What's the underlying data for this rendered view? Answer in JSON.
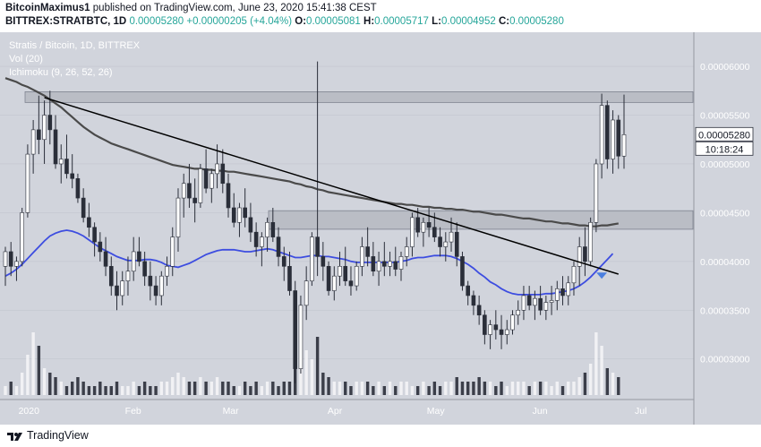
{
  "header": {
    "author": "BitcoinMaximus1",
    "published": "published on TradingView.com, June 23, 2020 15:41:38 CEST",
    "symbol": "BITTREX:STRATBTC, 1D",
    "price": "0.00005280",
    "change": "+0.00000205 (+4.04%)",
    "o_label": "O:",
    "o_value": "0.00005081",
    "h_label": "H:",
    "h_value": "0.00005717",
    "l_label": "L:",
    "l_value": "0.00004952",
    "c_label": "C:",
    "c_value": "0.00005280"
  },
  "legend": {
    "title": "Stratis / Bitcoin, 1D, BITTREX",
    "vol": "Vol (20)",
    "ichimoku": "Ichimoku (9, 26, 52, 26)"
  },
  "price_tag": {
    "value": "0.00005280",
    "countdown": "10:18:24"
  },
  "footer": {
    "logo_text": "TradingView"
  },
  "colors": {
    "background": "#d1d4dc",
    "up_candle": "#ffffff",
    "down_candle": "#2a2e39",
    "ma_slow": "#4a4a4a",
    "ma_fast": "#3d4de0",
    "zone": "#b2b5be",
    "signal_arrow": "#4a7fe0"
  },
  "chart_data": {
    "type": "candlestick",
    "x_ticks": [
      "2020",
      "Feb",
      "Mar",
      "Apr",
      "May",
      "Jun",
      "Jul"
    ],
    "y_ticks": [
      "0.00006000",
      "0.00005500",
      "0.00005000",
      "0.00004500",
      "0.00004000",
      "0.00003500",
      "0.00003000"
    ],
    "y_tick_values": [
      6e-05,
      5.5e-05,
      5e-05,
      4.5e-05,
      4e-05,
      3.5e-05,
      3e-05
    ],
    "ylim": [
      2.63e-05,
      6.35e-05
    ],
    "candles": [
      [
        3.95e-05,
        4.15e-05,
        3.75e-05,
        4.1e-05
      ],
      [
        4.1e-05,
        4.2e-05,
        3.85e-05,
        3.95e-05
      ],
      [
        3.95e-05,
        4.05e-05,
        3.8e-05,
        4e-05
      ],
      [
        4e-05,
        4.55e-05,
        3.95e-05,
        4.5e-05
      ],
      [
        4.5e-05,
        5.2e-05,
        4.45e-05,
        5.1e-05
      ],
      [
        5.1e-05,
        5.45e-05,
        4.9e-05,
        5.35e-05
      ],
      [
        5.35e-05,
        5.7e-05,
        5.1e-05,
        5.25e-05
      ],
      [
        5.25e-05,
        5.65e-05,
        5e-05,
        5.5e-05
      ],
      [
        5.5e-05,
        5.75e-05,
        5.2e-05,
        5.35e-05
      ],
      [
        5.35e-05,
        5.5e-05,
        4.95e-05,
        5e-05
      ],
      [
        5e-05,
        5.2e-05,
        4.8e-05,
        5.05e-05
      ],
      [
        5.05e-05,
        5.3e-05,
        4.85e-05,
        4.9e-05
      ],
      [
        4.9e-05,
        5.1e-05,
        4.75e-05,
        4.85e-05
      ],
      [
        4.85e-05,
        4.9e-05,
        4.6e-05,
        4.65e-05
      ],
      [
        4.65e-05,
        4.75e-05,
        4.4e-05,
        4.45e-05
      ],
      [
        4.45e-05,
        4.6e-05,
        4.25e-05,
        4.35e-05
      ],
      [
        4.35e-05,
        4.4e-05,
        4.05e-05,
        4.2e-05
      ],
      [
        4.2e-05,
        4.3e-05,
        4e-05,
        4.1e-05
      ],
      [
        4.1e-05,
        4.25e-05,
        3.85e-05,
        3.95e-05
      ],
      [
        3.95e-05,
        4.05e-05,
        3.65e-05,
        3.75e-05
      ],
      [
        3.75e-05,
        3.9e-05,
        3.5e-05,
        3.65e-05
      ],
      [
        3.65e-05,
        3.9e-05,
        3.55e-05,
        3.8e-05
      ],
      [
        3.8e-05,
        4.05e-05,
        3.65e-05,
        3.9e-05
      ],
      [
        3.9e-05,
        4.25e-05,
        3.8e-05,
        4.1e-05
      ],
      [
        4.1e-05,
        4.25e-05,
        3.95e-05,
        4e-05
      ],
      [
        4e-05,
        4.1e-05,
        3.75e-05,
        3.85e-05
      ],
      [
        3.85e-05,
        4e-05,
        3.6e-05,
        3.75e-05
      ],
      [
        3.75e-05,
        3.85e-05,
        3.55e-05,
        3.65e-05
      ],
      [
        3.65e-05,
        3.9e-05,
        3.55e-05,
        3.85e-05
      ],
      [
        3.85e-05,
        4.05e-05,
        3.75e-05,
        3.95e-05
      ],
      [
        3.95e-05,
        4.35e-05,
        3.85e-05,
        4.25e-05
      ],
      [
        4.25e-05,
        4.75e-05,
        4.1e-05,
        4.65e-05
      ],
      [
        4.65e-05,
        4.9e-05,
        4.45e-05,
        4.8e-05
      ],
      [
        4.8e-05,
        5e-05,
        4.55e-05,
        4.65e-05
      ],
      [
        4.65e-05,
        4.85e-05,
        4.4e-05,
        4.6e-05
      ],
      [
        4.6e-05,
        5e-05,
        4.55e-05,
        4.95e-05
      ],
      [
        4.95e-05,
        5.15e-05,
        4.7e-05,
        4.75e-05
      ],
      [
        4.75e-05,
        4.95e-05,
        4.6e-05,
        4.9e-05
      ],
      [
        4.9e-05,
        5.2e-05,
        4.75e-05,
        5e-05
      ],
      [
        5e-05,
        5.15e-05,
        4.7e-05,
        4.8e-05
      ],
      [
        4.8e-05,
        4.9e-05,
        4.45e-05,
        4.55e-05
      ],
      [
        4.55e-05,
        4.7e-05,
        4.35e-05,
        4.4e-05
      ],
      [
        4.4e-05,
        4.6e-05,
        4.25e-05,
        4.55e-05
      ],
      [
        4.55e-05,
        4.75e-05,
        4.35e-05,
        4.45e-05
      ],
      [
        4.45e-05,
        4.6e-05,
        4.2e-05,
        4.3e-05
      ],
      [
        4.3e-05,
        4.4e-05,
        4.05e-05,
        4.15e-05
      ],
      [
        4.15e-05,
        4.3e-05,
        3.95e-05,
        4.25e-05
      ],
      [
        4.25e-05,
        4.45e-05,
        4.1e-05,
        4.4e-05
      ],
      [
        4.4e-05,
        4.55e-05,
        4.2e-05,
        4.25e-05
      ],
      [
        4.25e-05,
        4.35e-05,
        3.95e-05,
        4.05e-05
      ],
      [
        4.05e-05,
        4.15e-05,
        3.8e-05,
        3.95e-05
      ],
      [
        3.95e-05,
        4.1e-05,
        3.65e-05,
        3.7e-05
      ],
      [
        3.7e-05,
        3.8e-05,
        2.75e-05,
        2.9e-05
      ],
      [
        2.9e-05,
        3.65e-05,
        2.85e-05,
        3.55e-05
      ],
      [
        3.55e-05,
        3.95e-05,
        3.4e-05,
        3.8e-05
      ],
      [
        3.8e-05,
        4.3e-05,
        3.75e-05,
        4.25e-05
      ],
      [
        4.25e-05,
        6.05e-05,
        3.85e-05,
        4.05e-05
      ],
      [
        4.05e-05,
        4.2e-05,
        3.8e-05,
        3.95e-05
      ],
      [
        3.95e-05,
        4e-05,
        3.65e-05,
        3.7e-05
      ],
      [
        3.7e-05,
        3.95e-05,
        3.6e-05,
        3.85e-05
      ],
      [
        3.85e-05,
        4.1e-05,
        3.75e-05,
        3.95e-05
      ],
      [
        3.95e-05,
        4.15e-05,
        3.75e-05,
        3.8e-05
      ],
      [
        3.8e-05,
        3.95e-05,
        3.65e-05,
        3.75e-05
      ],
      [
        3.75e-05,
        4e-05,
        3.7e-05,
        3.95e-05
      ],
      [
        3.95e-05,
        4.25e-05,
        3.85e-05,
        4.15e-05
      ],
      [
        4.15e-05,
        4.35e-05,
        3.95e-05,
        4.05e-05
      ],
      [
        4.05e-05,
        4.2e-05,
        3.85e-05,
        3.9e-05
      ],
      [
        3.9e-05,
        4.1e-05,
        3.75e-05,
        4e-05
      ],
      [
        4e-05,
        4.2e-05,
        3.85e-05,
        3.95e-05
      ],
      [
        3.95e-05,
        4.1e-05,
        3.85e-05,
        4e-05
      ],
      [
        4e-05,
        4.15e-05,
        3.85e-05,
        3.92e-05
      ],
      [
        3.92e-05,
        4.1e-05,
        3.8e-05,
        4.05e-05
      ],
      [
        4.05e-05,
        4.25e-05,
        3.95e-05,
        4.15e-05
      ],
      [
        4.15e-05,
        4.5e-05,
        4.05e-05,
        4.45e-05
      ],
      [
        4.45e-05,
        4.55e-05,
        4.25e-05,
        4.3e-05
      ],
      [
        4.3e-05,
        4.45e-05,
        4.15e-05,
        4.4e-05
      ],
      [
        4.4e-05,
        4.55e-05,
        4.25e-05,
        4.35e-05
      ],
      [
        4.35e-05,
        4.5e-05,
        4.2e-05,
        4.25e-05
      ],
      [
        4.25e-05,
        4.35e-05,
        4.05e-05,
        4.15e-05
      ],
      [
        4.15e-05,
        4.3e-05,
        4e-05,
        4.2e-05
      ],
      [
        4.2e-05,
        4.45e-05,
        4.1e-05,
        4.3e-05
      ],
      [
        4.3e-05,
        4.4e-05,
        3.95e-05,
        4.05e-05
      ],
      [
        4.05e-05,
        4.1e-05,
        3.7e-05,
        3.75e-05
      ],
      [
        3.75e-05,
        3.8e-05,
        3.55e-05,
        3.65e-05
      ],
      [
        3.65e-05,
        3.7e-05,
        3.45e-05,
        3.55e-05
      ],
      [
        3.55e-05,
        3.65e-05,
        3.35e-05,
        3.45e-05
      ],
      [
        3.45e-05,
        3.5e-05,
        3.15e-05,
        3.25e-05
      ],
      [
        3.25e-05,
        3.4e-05,
        3.1e-05,
        3.35e-05
      ],
      [
        3.35e-05,
        3.5e-05,
        3.2e-05,
        3.3e-05
      ],
      [
        3.3e-05,
        3.45e-05,
        3.1e-05,
        3.25e-05
      ],
      [
        3.25e-05,
        3.4e-05,
        3.15e-05,
        3.3e-05
      ],
      [
        3.3e-05,
        3.5e-05,
        3.25e-05,
        3.45e-05
      ],
      [
        3.45e-05,
        3.6e-05,
        3.35e-05,
        3.5e-05
      ],
      [
        3.5e-05,
        3.75e-05,
        3.4e-05,
        3.65e-05
      ],
      [
        3.65e-05,
        3.75e-05,
        3.5e-05,
        3.55e-05
      ],
      [
        3.55e-05,
        3.7e-05,
        3.4e-05,
        3.62e-05
      ],
      [
        3.62e-05,
        3.75e-05,
        3.45e-05,
        3.5e-05
      ],
      [
        3.5e-05,
        3.65e-05,
        3.4e-05,
        3.58e-05
      ],
      [
        3.58e-05,
        3.75e-05,
        3.45e-05,
        3.6e-05
      ],
      [
        3.6e-05,
        3.8e-05,
        3.5e-05,
        3.72e-05
      ],
      [
        3.72e-05,
        3.85e-05,
        3.55e-05,
        3.65e-05
      ],
      [
        3.65e-05,
        3.85e-05,
        3.55e-05,
        3.78e-05
      ],
      [
        3.78e-05,
        4e-05,
        3.65e-05,
        3.95e-05
      ],
      [
        3.95e-05,
        4.25e-05,
        3.75e-05,
        4.15e-05
      ],
      [
        4.15e-05,
        4.35e-05,
        3.85e-05,
        4e-05
      ],
      [
        4e-05,
        4.45e-05,
        3.95e-05,
        4.4e-05
      ],
      [
        4.4e-05,
        5.05e-05,
        4.3e-05,
        5e-05
      ],
      [
        5e-05,
        5.72e-05,
        4.85e-05,
        5.6e-05
      ],
      [
        5.6e-05,
        5.65e-05,
        4.95e-05,
        5.05e-05
      ],
      [
        5.05e-05,
        5.55e-05,
        4.9e-05,
        5.45e-05
      ],
      [
        5.45e-05,
        5.5e-05,
        4.95e-05,
        5.08e-05
      ],
      [
        5.08e-05,
        5.71e-05,
        4.95e-05,
        5.3e-05
      ]
    ],
    "volume": [
      2,
      3,
      2,
      5,
      9,
      14,
      11,
      6,
      5,
      4,
      3,
      2,
      3,
      4,
      3,
      2,
      2,
      3,
      2,
      2,
      3,
      2,
      2,
      3,
      2,
      3,
      2,
      2,
      3,
      3,
      4,
      5,
      4,
      3,
      3,
      4,
      3,
      3,
      4,
      3,
      3,
      2,
      2,
      3,
      2,
      3,
      2,
      3,
      3,
      2,
      3,
      3,
      9,
      14,
      10,
      8,
      13,
      5,
      4,
      3,
      3,
      3,
      2,
      3,
      3,
      3,
      2,
      3,
      2,
      3,
      2,
      3,
      3,
      2,
      2,
      3,
      2,
      3,
      2,
      3,
      3,
      4,
      3,
      3,
      3,
      4,
      3,
      3,
      2,
      3,
      2,
      3,
      3,
      3,
      2,
      3,
      3,
      3,
      2,
      3,
      2,
      3,
      3,
      4,
      5,
      7,
      14,
      11,
      6,
      5,
      4
    ],
    "ma_slow": [
      5.88e-05,
      5.86e-05,
      5.84e-05,
      5.81e-05,
      5.79e-05,
      5.76e-05,
      5.73e-05,
      5.7e-05,
      5.66e-05,
      5.62e-05,
      5.58e-05,
      5.53e-05,
      5.48e-05,
      5.43e-05,
      5.38e-05,
      5.34e-05,
      5.3e-05,
      5.27e-05,
      5.24e-05,
      5.21e-05,
      5.19e-05,
      5.17e-05,
      5.15e-05,
      5.13e-05,
      5.11e-05,
      5.09e-05,
      5.07e-05,
      5.05e-05,
      5.03e-05,
      5.01e-05,
      4.99e-05,
      4.98e-05,
      4.97e-05,
      4.96e-05,
      4.95e-05,
      4.95e-05,
      4.94e-05,
      4.94e-05,
      4.93e-05,
      4.93e-05,
      4.92e-05,
      4.92e-05,
      4.91e-05,
      4.9e-05,
      4.89e-05,
      4.88e-05,
      4.87e-05,
      4.86e-05,
      4.85e-05,
      4.84e-05,
      4.83e-05,
      4.82e-05,
      4.8e-05,
      4.79e-05,
      4.77e-05,
      4.76e-05,
      4.74e-05,
      4.73e-05,
      4.71e-05,
      4.7e-05,
      4.69e-05,
      4.68e-05,
      4.67e-05,
      4.66e-05,
      4.65e-05,
      4.64e-05,
      4.63e-05,
      4.62e-05,
      4.61e-05,
      4.6e-05,
      4.59e-05,
      4.59e-05,
      4.58e-05,
      4.58e-05,
      4.57e-05,
      4.56e-05,
      4.56e-05,
      4.55e-05,
      4.55e-05,
      4.54e-05,
      4.54e-05,
      4.53e-05,
      4.53e-05,
      4.52e-05,
      4.51e-05,
      4.51e-05,
      4.5e-05,
      4.49e-05,
      4.48e-05,
      4.48e-05,
      4.47e-05,
      4.46e-05,
      4.45e-05,
      4.44e-05,
      4.44e-05,
      4.43e-05,
      4.42e-05,
      4.41e-05,
      4.41e-05,
      4.4e-05,
      4.39e-05,
      4.39e-05,
      4.38e-05,
      4.37e-05,
      4.37e-05,
      4.36e-05,
      4.36e-05,
      4.37e-05,
      4.37e-05,
      4.38e-05,
      4.39e-05
    ],
    "ma_fast": [
      3.85e-05,
      3.88e-05,
      3.92e-05,
      3.97e-05,
      4.03e-05,
      4.09e-05,
      4.15e-05,
      4.21e-05,
      4.26e-05,
      4.29e-05,
      4.31e-05,
      4.32e-05,
      4.31e-05,
      4.29e-05,
      4.26e-05,
      4.22e-05,
      4.18e-05,
      4.14e-05,
      4.11e-05,
      4.08e-05,
      4.05e-05,
      4.03e-05,
      4.01e-05,
      4.01e-05,
      4.01e-05,
      4.02e-05,
      4.02e-05,
      4.01e-05,
      3.99e-05,
      3.96e-05,
      3.95e-05,
      3.94e-05,
      3.96e-05,
      3.98e-05,
      4.01e-05,
      4.04e-05,
      4.07e-05,
      4.09e-05,
      4.11e-05,
      4.12e-05,
      4.12e-05,
      4.12e-05,
      4.11e-05,
      4.1e-05,
      4.1e-05,
      4.11e-05,
      4.12e-05,
      4.13e-05,
      4.12e-05,
      4.1e-05,
      4.08e-05,
      4.06e-05,
      4.04e-05,
      4.04e-05,
      4.05e-05,
      4.06e-05,
      4.06e-05,
      4.05e-05,
      4.05e-05,
      4.04e-05,
      4.03e-05,
      4.02e-05,
      4e-05,
      3.99e-05,
      3.99e-05,
      3.99e-05,
      3.99e-05,
      3.99e-05,
      3.99e-05,
      3.99e-05,
      3.99e-05,
      4e-05,
      4.01e-05,
      4.03e-05,
      4.04e-05,
      4.04e-05,
      4.05e-05,
      4.06e-05,
      4.06e-05,
      4.06e-05,
      4.05e-05,
      4.03e-05,
      4e-05,
      3.97e-05,
      3.93e-05,
      3.88e-05,
      3.84e-05,
      3.79e-05,
      3.76e-05,
      3.72e-05,
      3.69e-05,
      3.67e-05,
      3.66e-05,
      3.66e-05,
      3.66e-05,
      3.66e-05,
      3.66e-05,
      3.67e-05,
      3.67e-05,
      3.68e-05,
      3.69e-05,
      3.7e-05,
      3.72e-05,
      3.75e-05,
      3.79e-05,
      3.84e-05,
      3.9e-05,
      3.96e-05,
      4.02e-05,
      4.08e-05
    ],
    "trendline": {
      "start": [
        7,
        5.68e-05
      ],
      "end": [
        110,
        3.87e-05
      ]
    },
    "resistance_zone": [
      5.63e-05,
      5.74e-05
    ],
    "support_zone": [
      4.33e-05,
      4.52e-05
    ],
    "signal_index": 107
  }
}
